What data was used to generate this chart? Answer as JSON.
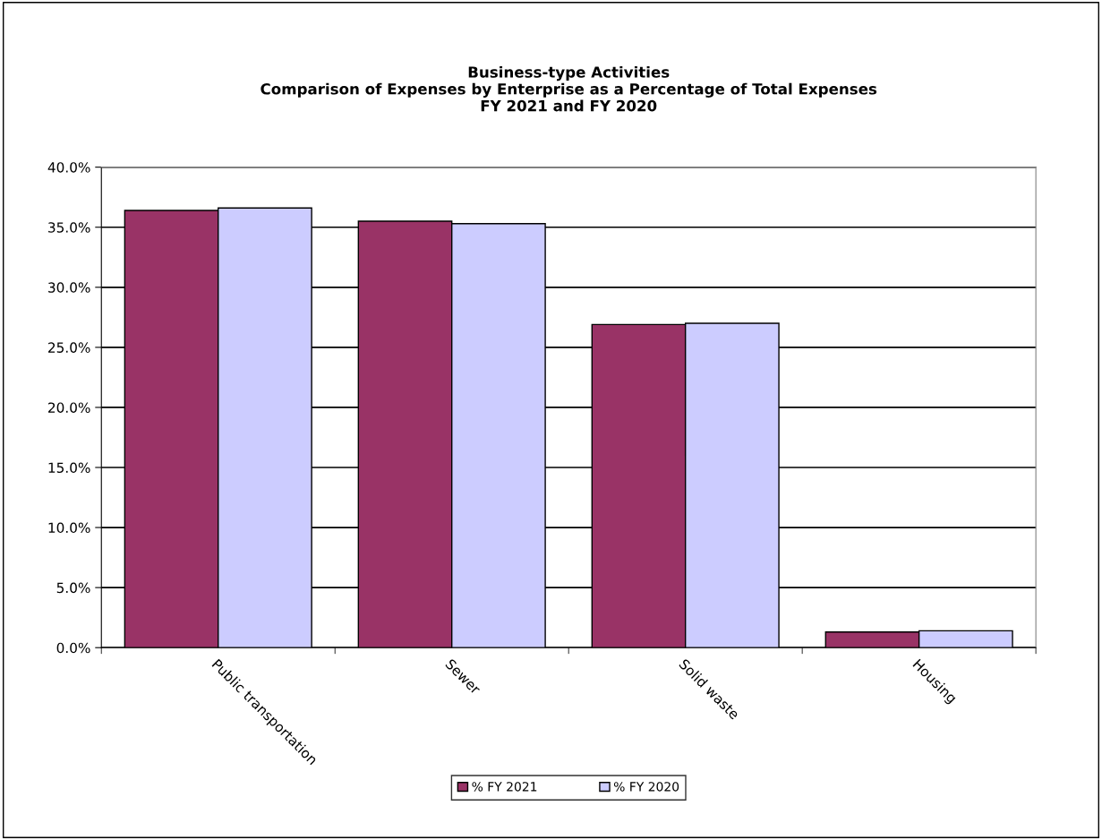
{
  "chart_data": {
    "type": "bar",
    "title": "Business-type Activities\nComparison of Expenses by Enterprise as a Percentage of Total Expenses\nFY 2021 and FY 2020",
    "categories": [
      "Public transportation",
      "Sewer",
      "Solid waste",
      "Housing"
    ],
    "series": [
      {
        "name": "% FY 2021",
        "color": "#993366",
        "values": [
          36.4,
          35.5,
          26.9,
          1.3
        ]
      },
      {
        "name": "% FY 2020",
        "color": "#ccccff",
        "values": [
          36.6,
          35.3,
          27.0,
          1.4
        ]
      }
    ],
    "ylim": [
      0,
      40
    ],
    "yticks": [
      {
        "value": 0,
        "label": "0.0%"
      },
      {
        "value": 5,
        "label": "5.0%"
      },
      {
        "value": 10,
        "label": "10.0%"
      },
      {
        "value": 15,
        "label": "15.0%"
      },
      {
        "value": 20,
        "label": "20.0%"
      },
      {
        "value": 25,
        "label": "25.0%"
      },
      {
        "value": 30,
        "label": "30.0%"
      },
      {
        "value": 35,
        "label": "35.0%"
      },
      {
        "value": 40,
        "label": "40.0%"
      }
    ],
    "grid": "y",
    "legend": "bottom"
  }
}
